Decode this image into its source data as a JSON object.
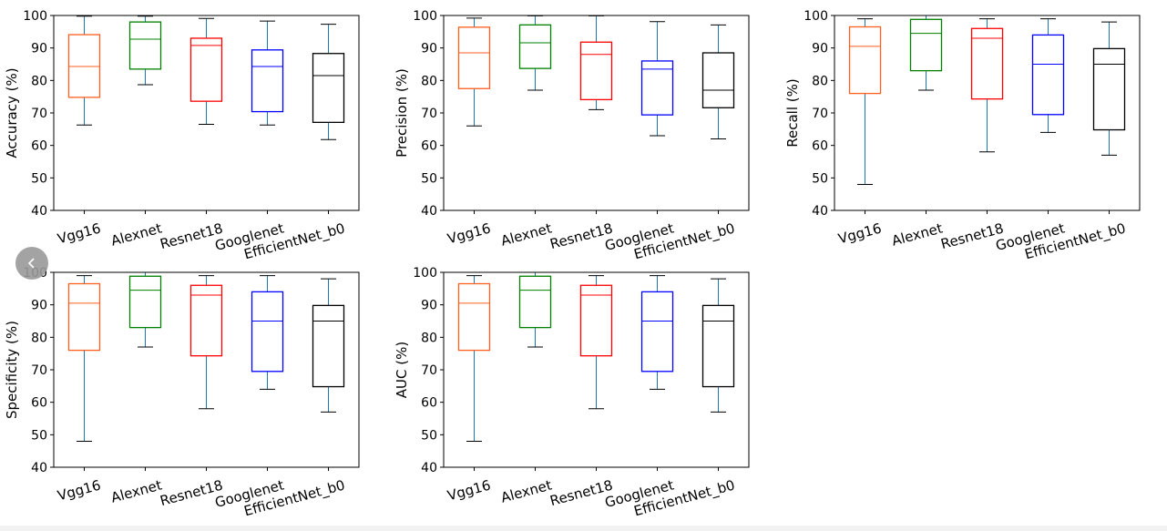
{
  "carousel": {
    "prev_icon": "chevron-left-icon"
  },
  "chart_data": [
    {
      "type": "box",
      "ylabel": "Accuracy (%)",
      "ylim": [
        40,
        100
      ],
      "yticks": [
        40,
        50,
        60,
        70,
        80,
        90,
        100
      ],
      "categories": [
        "Vgg16",
        "Alexnet",
        "Resnet18",
        "Googlenet",
        "EfficientNet_b0"
      ],
      "colors": [
        "#ff5f1f",
        "#008000",
        "#ff0000",
        "#0000ff",
        "#000000"
      ],
      "whisker_color": "#1f77b4",
      "boxes": [
        {
          "min": 66.3,
          "q1": 74.8,
          "median": 84.3,
          "q3": 94.1,
          "max": 99.8
        },
        {
          "min": 78.7,
          "q1": 83.5,
          "median": 92.7,
          "q3": 98,
          "max": 99.8
        },
        {
          "min": 66.5,
          "q1": 73.6,
          "median": 90.8,
          "q3": 93,
          "max": 99.1
        },
        {
          "min": 66.3,
          "q1": 70.4,
          "median": 84.3,
          "q3": 89.4,
          "max": 98.3
        },
        {
          "min": 61.8,
          "q1": 67.1,
          "median": 81.5,
          "q3": 88.3,
          "max": 97.3
        }
      ]
    },
    {
      "type": "box",
      "ylabel": "Precision (%)",
      "ylim": [
        40,
        100
      ],
      "yticks": [
        40,
        50,
        60,
        70,
        80,
        90,
        100
      ],
      "categories": [
        "Vgg16",
        "Alexnet",
        "Resnet18",
        "Googlenet",
        "EfficientNet_b0"
      ],
      "colors": [
        "#ff5f1f",
        "#008000",
        "#ff0000",
        "#0000ff",
        "#000000"
      ],
      "whisker_color": "#1f77b4",
      "boxes": [
        {
          "min": 66,
          "q1": 77.5,
          "median": 88.5,
          "q3": 96.4,
          "max": 99.2
        },
        {
          "min": 77,
          "q1": 83.7,
          "median": 91.6,
          "q3": 97.1,
          "max": 99.9
        },
        {
          "min": 71,
          "q1": 74.1,
          "median": 88,
          "q3": 91.8,
          "max": 99.9
        },
        {
          "min": 63,
          "q1": 69.4,
          "median": 83.5,
          "q3": 86,
          "max": 98.1
        },
        {
          "min": 62,
          "q1": 71.6,
          "median": 77,
          "q3": 88.5,
          "max": 97.1
        }
      ]
    },
    {
      "type": "box",
      "ylabel": "Recall (%)",
      "ylim": [
        40,
        100
      ],
      "yticks": [
        40,
        50,
        60,
        70,
        80,
        90,
        100
      ],
      "categories": [
        "Vgg16",
        "Alexnet",
        "Resnet18",
        "Googlenet",
        "EfficientNet_b0"
      ],
      "colors": [
        "#ff5f1f",
        "#008000",
        "#ff0000",
        "#0000ff",
        "#000000"
      ],
      "whisker_color": "#1f77b4",
      "boxes": [
        {
          "min": 48,
          "q1": 76,
          "median": 90.5,
          "q3": 96.5,
          "max": 99
        },
        {
          "min": 77,
          "q1": 83,
          "median": 94.5,
          "q3": 98.8,
          "max": 100
        },
        {
          "min": 58,
          "q1": 74.3,
          "median": 93,
          "q3": 96,
          "max": 99
        },
        {
          "min": 64,
          "q1": 69.5,
          "median": 85,
          "q3": 94,
          "max": 99
        },
        {
          "min": 57,
          "q1": 64.8,
          "median": 85,
          "q3": 89.8,
          "max": 98
        }
      ]
    },
    {
      "type": "box",
      "ylabel": "Specificity (%)",
      "ylim": [
        40,
        100
      ],
      "yticks": [
        40,
        50,
        60,
        70,
        80,
        90,
        100
      ],
      "categories": [
        "Vgg16",
        "Alexnet",
        "Resnet18",
        "Googlenet",
        "EfficientNet_b0"
      ],
      "colors": [
        "#ff5f1f",
        "#008000",
        "#ff0000",
        "#0000ff",
        "#000000"
      ],
      "whisker_color": "#1f77b4",
      "boxes": [
        {
          "min": 48,
          "q1": 76,
          "median": 90.5,
          "q3": 96.5,
          "max": 99
        },
        {
          "min": 77,
          "q1": 83,
          "median": 94.5,
          "q3": 98.8,
          "max": 100
        },
        {
          "min": 58,
          "q1": 74.3,
          "median": 93,
          "q3": 96,
          "max": 99
        },
        {
          "min": 64,
          "q1": 69.5,
          "median": 85,
          "q3": 94,
          "max": 99
        },
        {
          "min": 57,
          "q1": 64.8,
          "median": 85,
          "q3": 89.8,
          "max": 98
        }
      ]
    },
    {
      "type": "box",
      "ylabel": "AUC (%)",
      "ylim": [
        40,
        100
      ],
      "yticks": [
        40,
        50,
        60,
        70,
        80,
        90,
        100
      ],
      "categories": [
        "Vgg16",
        "Alexnet",
        "Resnet18",
        "Googlenet",
        "EfficientNet_b0"
      ],
      "colors": [
        "#ff5f1f",
        "#008000",
        "#ff0000",
        "#0000ff",
        "#000000"
      ],
      "whisker_color": "#1f77b4",
      "boxes": [
        {
          "min": 48,
          "q1": 76,
          "median": 90.5,
          "q3": 96.5,
          "max": 99
        },
        {
          "min": 77,
          "q1": 83,
          "median": 94.5,
          "q3": 98.8,
          "max": 100
        },
        {
          "min": 58,
          "q1": 74.3,
          "median": 93,
          "q3": 96,
          "max": 99
        },
        {
          "min": 64,
          "q1": 69.5,
          "median": 85,
          "q3": 94,
          "max": 99
        },
        {
          "min": 57,
          "q1": 64.8,
          "median": 85,
          "q3": 89.8,
          "max": 98
        }
      ]
    }
  ]
}
